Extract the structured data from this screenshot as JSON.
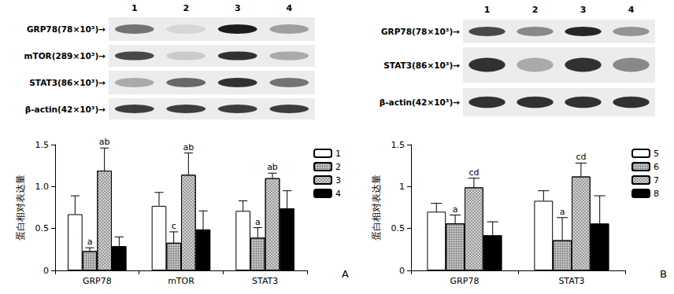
{
  "chart_data": [
    {
      "type": "bar",
      "title": "A",
      "y_label": "蛋白相对表达量",
      "categories": [
        "GRP78",
        "mTOR",
        "STAT3"
      ],
      "series": [
        {
          "name": "1",
          "color": "#ffffff",
          "values": [
            0.67,
            0.77,
            0.71
          ],
          "errors": [
            0.22,
            0.16,
            0.12
          ],
          "annotations": [
            null,
            null,
            null
          ]
        },
        {
          "name": "2",
          "color": "#c8c8c8",
          "values": [
            0.23,
            0.33,
            0.39
          ],
          "errors": [
            0.04,
            0.13,
            0.12
          ],
          "annotations": [
            "a",
            "c",
            "a"
          ]
        },
        {
          "name": "3",
          "color": "#9a9a9a",
          "values": [
            1.19,
            1.14,
            1.1
          ],
          "errors": [
            0.27,
            0.26,
            0.06
          ],
          "annotations": [
            "ab",
            "ab",
            "ab"
          ]
        },
        {
          "name": "4",
          "color": "#000000",
          "values": [
            0.29,
            0.49,
            0.74
          ],
          "errors": [
            0.11,
            0.22,
            0.21
          ],
          "annotations": [
            null,
            null,
            null
          ]
        }
      ],
      "ylim": [
        0,
        1.5
      ],
      "yticks": [
        0,
        0.5,
        {
          "value": 1,
          "label": "1.0"
        },
        1.5
      ],
      "grid": false,
      "legend": "right"
    },
    {
      "type": "bar",
      "title": "B",
      "y_label": "蛋白相对表达量",
      "categories": [
        "GRP78",
        "STAT3"
      ],
      "series": [
        {
          "name": "5",
          "color": "#ffffff",
          "values": [
            0.7,
            0.83
          ],
          "errors": [
            0.1,
            0.12
          ],
          "annotations": [
            null,
            null
          ]
        },
        {
          "name": "6",
          "color": "#c8c8c8",
          "values": [
            0.56,
            0.36
          ],
          "errors": [
            0.1,
            0.27
          ],
          "annotations": [
            "a",
            "a"
          ]
        },
        {
          "name": "7",
          "color": "#9a9a9a",
          "values": [
            0.99,
            1.12
          ],
          "errors": [
            0.11,
            0.16
          ],
          "annotations": [
            "cd",
            "cd"
          ]
        },
        {
          "name": "8",
          "color": "#000000",
          "values": [
            0.42,
            0.56
          ],
          "errors": [
            0.16,
            0.33
          ],
          "annotations": [
            null,
            null
          ]
        }
      ],
      "ylim": [
        0,
        1.5
      ],
      "yticks": [
        0,
        0.5,
        1,
        1.5
      ],
      "grid": false,
      "legend": "right"
    }
  ],
  "blots": [
    {
      "lanes": [
        "1",
        "2",
        "3",
        "4"
      ],
      "rows": [
        {
          "label": "GRP78(78×10³)→",
          "band_intensity": [
            0.55,
            0.1,
            0.95,
            0.35
          ]
        },
        {
          "label": "mTOR(289×10³)→",
          "band_intensity": [
            0.75,
            0.15,
            0.85,
            0.3
          ]
        },
        {
          "label": "STAT3(86×10³)→",
          "band_intensity": [
            0.3,
            0.6,
            0.85,
            0.55
          ]
        },
        {
          "label": "β-actin(42×10³)→",
          "band_intensity": [
            0.8,
            0.8,
            0.8,
            0.8
          ]
        }
      ]
    },
    {
      "lanes": [
        "1",
        "2",
        "3",
        "4"
      ],
      "rows": [
        {
          "label": "GRP78(78×10³)→",
          "band_intensity": [
            0.75,
            0.45,
            0.9,
            0.4
          ]
        },
        {
          "label": "STAT3(86×10³)→",
          "band_intensity": [
            0.85,
            0.3,
            0.85,
            0.45
          ]
        },
        {
          "label": "β-actin(42×10³)→",
          "band_intensity": [
            0.85,
            0.85,
            0.85,
            0.85
          ]
        }
      ]
    }
  ]
}
